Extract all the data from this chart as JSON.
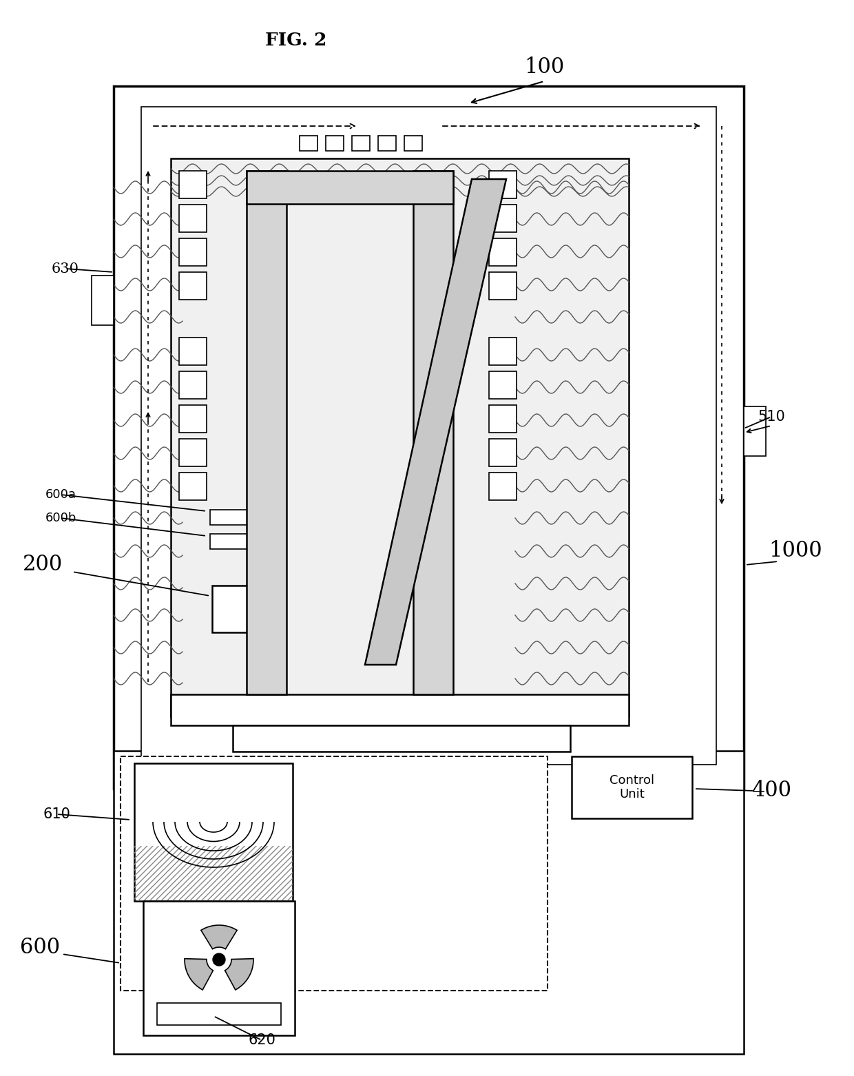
{
  "title": "FIG. 2",
  "background_color": "#ffffff",
  "label_100": "100",
  "label_200": "200",
  "label_400": "400",
  "label_510": "510",
  "label_600": "600",
  "label_600a": "600a",
  "label_600b": "600b",
  "label_610": "610",
  "label_620": "620",
  "label_630": "630",
  "label_1000": "1000",
  "control_unit_text": "Control\nUnit"
}
